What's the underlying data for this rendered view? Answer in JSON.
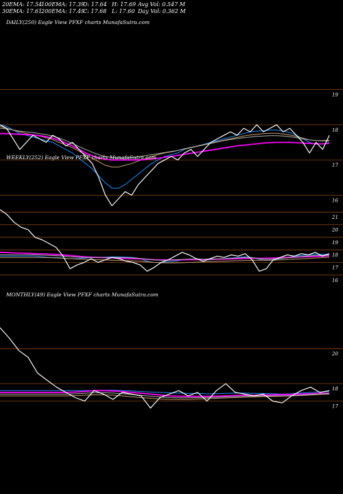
{
  "header": {
    "ema20": "20EMA: 17.54",
    "ema30": "30EMA: 17.61",
    "ema100": "100EMA: 17.39",
    "ema200": "200EMA: 17.49",
    "open": "O: 17.64",
    "close": "C: 17.68",
    "high": "H: 17.69",
    "low": "L: 17.60",
    "avg_vol": "Avg Vol: 0.547 M",
    "day_vol": "Day Vol: 0.362 M"
  },
  "colors": {
    "background": "#000000",
    "price": "#ffffff",
    "gridline": "#8b4513",
    "short_ma": "#1e90ff",
    "long_ma": "#ff00ff",
    "mid_ma": "#c8a070",
    "grey_ma": "#b0b0b0"
  },
  "chart_data": [
    {
      "type": "line",
      "title": "DAILY(250) Eagle View PFXF charts MunafaSutra.com",
      "yticks": [
        19,
        18,
        17,
        16
      ],
      "ylim": [
        15.6,
        19.4
      ],
      "series": [
        {
          "role": "price",
          "color": "#ffffff",
          "values": [
            18.0,
            17.9,
            17.6,
            17.3,
            17.5,
            17.7,
            17.6,
            17.5,
            17.7,
            17.6,
            17.4,
            17.5,
            17.3,
            17.1,
            16.9,
            16.5,
            16.0,
            15.7,
            15.9,
            16.1,
            16.0,
            16.3,
            16.5,
            16.7,
            16.9,
            17.0,
            17.1,
            17.0,
            17.2,
            17.3,
            17.1,
            17.3,
            17.5,
            17.6,
            17.7,
            17.8,
            17.7,
            17.9,
            17.8,
            18.0,
            17.8,
            17.9,
            18.0,
            17.8,
            17.9,
            17.7,
            17.5,
            17.2,
            17.5,
            17.3,
            17.7
          ]
        },
        {
          "role": "ma-fast",
          "color": "#1e90ff",
          "values": [
            18.0,
            17.95,
            17.85,
            17.75,
            17.7,
            17.65,
            17.6,
            17.55,
            17.5,
            17.4,
            17.3,
            17.2,
            17.05,
            16.9,
            16.75,
            16.55,
            16.35,
            16.2,
            16.2,
            16.3,
            16.45,
            16.6,
            16.75,
            16.9,
            17.0,
            17.1,
            17.15,
            17.2,
            17.3,
            17.35,
            17.4,
            17.45,
            17.5,
            17.55,
            17.6,
            17.65,
            17.7,
            17.75,
            17.8,
            17.82,
            17.83,
            17.85,
            17.85,
            17.82,
            17.78,
            17.7,
            17.6,
            17.5,
            17.45,
            17.45,
            17.5
          ]
        },
        {
          "role": "ma-mid",
          "color": "#c8a070",
          "values": [
            17.95,
            17.9,
            17.85,
            17.8,
            17.75,
            17.72,
            17.68,
            17.63,
            17.58,
            17.5,
            17.42,
            17.35,
            17.25,
            17.15,
            17.05,
            16.95,
            16.85,
            16.8,
            16.8,
            16.85,
            16.9,
            16.97,
            17.03,
            17.1,
            17.15,
            17.2,
            17.23,
            17.27,
            17.32,
            17.36,
            17.4,
            17.44,
            17.48,
            17.52,
            17.56,
            17.6,
            17.64,
            17.68,
            17.71,
            17.73,
            17.75,
            17.76,
            17.76,
            17.74,
            17.71,
            17.67,
            17.62,
            17.57,
            17.55,
            17.55,
            17.56
          ]
        },
        {
          "role": "ma-slow",
          "color": "#ff00ff",
          "values": [
            17.75,
            17.75,
            17.74,
            17.73,
            17.72,
            17.71,
            17.69,
            17.66,
            17.62,
            17.56,
            17.48,
            17.4,
            17.3,
            17.2,
            17.12,
            17.06,
            17.02,
            17.0,
            17.0,
            17.0,
            17.0,
            17.0,
            17.01,
            17.03,
            17.05,
            17.08,
            17.1,
            17.13,
            17.16,
            17.19,
            17.22,
            17.25,
            17.28,
            17.31,
            17.34,
            17.37,
            17.4,
            17.42,
            17.44,
            17.46,
            17.48,
            17.49,
            17.5,
            17.5,
            17.5,
            17.49,
            17.48,
            17.47,
            17.46,
            17.46,
            17.47
          ]
        },
        {
          "role": "ma-grey",
          "color": "#b0b0b0",
          "values": [
            17.9,
            17.88,
            17.85,
            17.82,
            17.8,
            17.78,
            17.75,
            17.72,
            17.68,
            17.62,
            17.55,
            17.47,
            17.38,
            17.3,
            17.22,
            17.15,
            17.1,
            17.07,
            17.06,
            17.06,
            17.07,
            17.09,
            17.12,
            17.15,
            17.18,
            17.21,
            17.24,
            17.27,
            17.31,
            17.35,
            17.39,
            17.43,
            17.47,
            17.51,
            17.55,
            17.58,
            17.61,
            17.63,
            17.65,
            17.67,
            17.68,
            17.69,
            17.69,
            17.68,
            17.66,
            17.63,
            17.6,
            17.57,
            17.55,
            17.54,
            17.54
          ]
        }
      ]
    },
    {
      "type": "line",
      "title": "WEEKLY(252) Eagle View PFXF charts MunafaSutra.com",
      "yticks": [
        21,
        20,
        19,
        18,
        17,
        16
      ],
      "ylim": [
        15.5,
        21.5
      ],
      "series": [
        {
          "role": "price",
          "color": "#ffffff",
          "values": [
            21.2,
            20.8,
            20.2,
            19.8,
            19.6,
            19.0,
            18.8,
            18.5,
            18.2,
            17.5,
            16.5,
            16.8,
            17.0,
            17.3,
            17.0,
            17.2,
            17.4,
            17.3,
            17.1,
            17.0,
            16.8,
            16.3,
            16.6,
            17.0,
            17.2,
            17.5,
            17.8,
            17.6,
            17.3,
            17.1,
            17.3,
            17.5,
            17.4,
            17.6,
            17.5,
            17.7,
            17.2,
            16.3,
            16.5,
            17.2,
            17.4,
            17.6,
            17.5,
            17.7,
            17.6,
            17.8,
            17.5,
            17.7
          ]
        },
        {
          "role": "ma-fast",
          "color": "#1e90ff",
          "values": [
            17.5,
            17.5,
            17.5,
            17.5,
            17.5,
            17.5,
            17.45,
            17.4,
            17.4,
            17.35,
            17.3,
            17.3,
            17.35,
            17.4,
            17.4,
            17.42,
            17.44,
            17.44,
            17.42,
            17.4,
            17.3,
            17.1,
            17.0,
            17.0,
            17.05,
            17.1,
            17.2,
            17.25,
            17.25,
            17.2,
            17.2,
            17.25,
            17.3,
            17.35,
            17.4,
            17.45,
            17.4,
            17.25,
            17.15,
            17.2,
            17.3,
            17.4,
            17.5,
            17.55,
            17.6,
            17.65,
            17.65,
            17.65
          ]
        },
        {
          "role": "ma-slow",
          "color": "#ff00ff",
          "values": [
            17.8,
            17.78,
            17.76,
            17.74,
            17.72,
            17.7,
            17.68,
            17.66,
            17.64,
            17.6,
            17.55,
            17.5,
            17.45,
            17.42,
            17.4,
            17.38,
            17.36,
            17.34,
            17.32,
            17.3,
            17.28,
            17.25,
            17.22,
            17.2,
            17.2,
            17.2,
            17.21,
            17.22,
            17.23,
            17.24,
            17.25,
            17.26,
            17.27,
            17.28,
            17.3,
            17.32,
            17.33,
            17.33,
            17.33,
            17.35,
            17.37,
            17.4,
            17.42,
            17.44,
            17.46,
            17.48,
            17.5,
            17.52
          ]
        },
        {
          "role": "ma-mid",
          "color": "#c8a070",
          "values": [
            17.4,
            17.4,
            17.4,
            17.4,
            17.4,
            17.4,
            17.4,
            17.38,
            17.36,
            17.33,
            17.3,
            17.27,
            17.25,
            17.23,
            17.21,
            17.2,
            17.18,
            17.16,
            17.14,
            17.12,
            17.1,
            17.05,
            17.0,
            16.98,
            16.97,
            16.97,
            16.98,
            17.0,
            17.02,
            17.04,
            17.06,
            17.08,
            17.1,
            17.12,
            17.14,
            17.16,
            17.17,
            17.17,
            17.17,
            17.18,
            17.2,
            17.23,
            17.26,
            17.29,
            17.32,
            17.35,
            17.38,
            17.41
          ]
        },
        {
          "role": "ma-grey",
          "color": "#b0b0b0",
          "values": [
            17.6,
            17.6,
            17.6,
            17.6,
            17.6,
            17.6,
            17.58,
            17.56,
            17.54,
            17.5,
            17.45,
            17.42,
            17.4,
            17.4,
            17.4,
            17.4,
            17.4,
            17.4,
            17.38,
            17.36,
            17.32,
            17.25,
            17.2,
            17.18,
            17.18,
            17.2,
            17.24,
            17.27,
            17.28,
            17.27,
            17.27,
            17.28,
            17.3,
            17.33,
            17.36,
            17.4,
            17.38,
            17.3,
            17.25,
            17.27,
            17.32,
            17.37,
            17.42,
            17.47,
            17.51,
            17.55,
            17.57,
            17.59
          ]
        }
      ]
    },
    {
      "type": "line",
      "title": "MONTHLY(49) Eagle View PFXF charts MunafaSutra.com",
      "yticks": [
        20,
        18,
        17
      ],
      "ylim": [
        16.2,
        21.5
      ],
      "series": [
        {
          "role": "price",
          "color": "#ffffff",
          "values": [
            21.2,
            20.6,
            19.9,
            19.5,
            18.6,
            18.2,
            17.8,
            17.5,
            17.2,
            17.0,
            17.6,
            17.4,
            17.1,
            17.5,
            17.4,
            17.3,
            16.6,
            17.2,
            17.4,
            17.6,
            17.3,
            17.5,
            17.0,
            17.6,
            18.0,
            17.5,
            17.4,
            17.3,
            17.4,
            17.0,
            16.9,
            17.3,
            17.6,
            17.8,
            17.5,
            17.6
          ]
        },
        {
          "role": "ma-fast",
          "color": "#1e90ff",
          "values": [
            17.6,
            17.6,
            17.6,
            17.6,
            17.6,
            17.6,
            17.6,
            17.6,
            17.6,
            17.6,
            17.6,
            17.62,
            17.62,
            17.6,
            17.58,
            17.55,
            17.52,
            17.5,
            17.48,
            17.46,
            17.45,
            17.44,
            17.42,
            17.43,
            17.45,
            17.46,
            17.46,
            17.45,
            17.44,
            17.42,
            17.4,
            17.42,
            17.46,
            17.5,
            17.52,
            17.55
          ]
        },
        {
          "role": "ma-slow",
          "color": "#ff00ff",
          "values": [
            17.5,
            17.5,
            17.5,
            17.5,
            17.5,
            17.5,
            17.5,
            17.5,
            17.52,
            17.55,
            17.6,
            17.6,
            17.58,
            17.55,
            17.5,
            17.45,
            17.4,
            17.35,
            17.3,
            17.28,
            17.27,
            17.27,
            17.27,
            17.28,
            17.3,
            17.32,
            17.33,
            17.34,
            17.35,
            17.36,
            17.37,
            17.38,
            17.4,
            17.42,
            17.44,
            17.46
          ]
        },
        {
          "role": "ma-mid",
          "color": "#c8a070",
          "values": [
            17.3,
            17.3,
            17.3,
            17.3,
            17.3,
            17.3,
            17.3,
            17.3,
            17.32,
            17.34,
            17.36,
            17.36,
            17.34,
            17.3,
            17.25,
            17.2,
            17.16,
            17.12,
            17.1,
            17.1,
            17.1,
            17.12,
            17.14,
            17.16,
            17.18,
            17.2,
            17.22,
            17.24,
            17.26,
            17.27,
            17.28,
            17.3,
            17.32,
            17.35,
            17.38,
            17.4
          ]
        },
        {
          "role": "ma-grey",
          "color": "#b0b0b0",
          "values": [
            17.4,
            17.4,
            17.4,
            17.4,
            17.4,
            17.4,
            17.4,
            17.4,
            17.42,
            17.45,
            17.48,
            17.48,
            17.46,
            17.42,
            17.38,
            17.33,
            17.28,
            17.24,
            17.2,
            17.19,
            17.19,
            17.2,
            17.21,
            17.22,
            17.24,
            17.26,
            17.28,
            17.29,
            17.3,
            17.3,
            17.3,
            17.32,
            17.35,
            17.38,
            17.41,
            17.44
          ]
        }
      ]
    }
  ]
}
